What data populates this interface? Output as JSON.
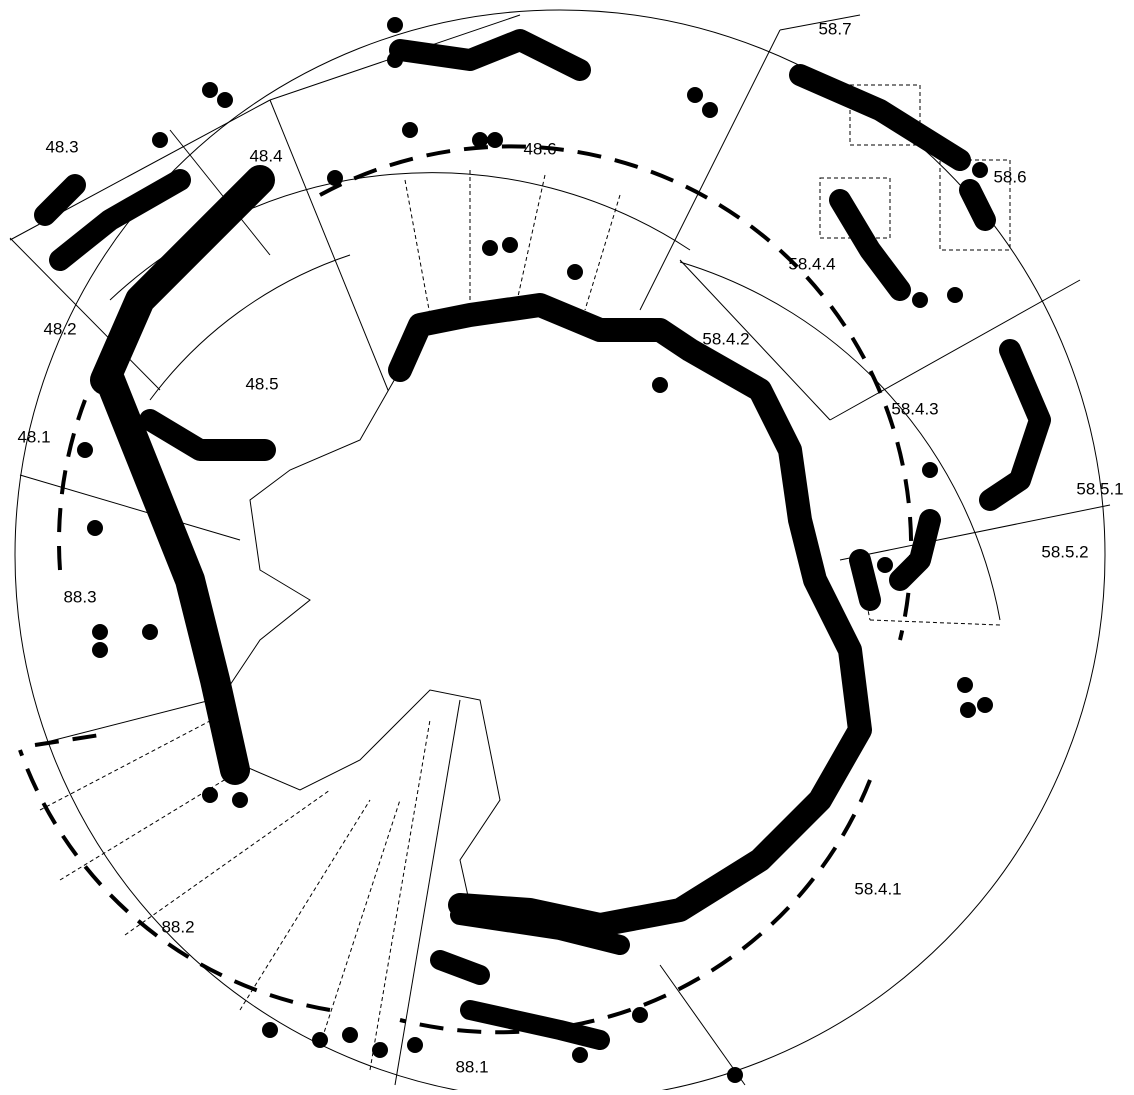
{
  "map": {
    "labels": [
      "58.7",
      "48.3",
      "48.4",
      "48.6",
      "58.6",
      "58.4.4",
      "48.2",
      "58.4.2",
      "48.5",
      "58.4.3",
      "48.1",
      "58.5.1",
      "58.5.2",
      "88.3",
      "58.4.1",
      "88.2",
      "88.1"
    ]
  }
}
